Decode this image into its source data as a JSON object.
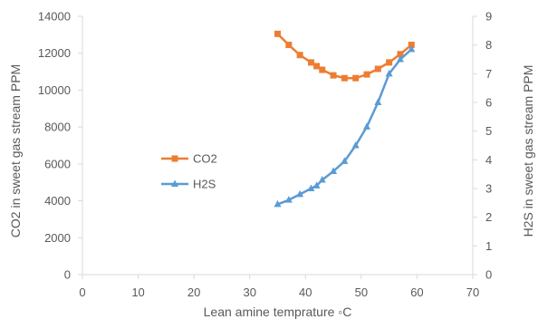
{
  "chart_data": {
    "type": "line",
    "xlabel": "Lean amine temprature ◦C",
    "ylabel_left": "CO2 in sweet gas stream PPM",
    "ylabel_right": "H2S in sweet gas stream PPM",
    "xlim": [
      0,
      70
    ],
    "x_ticks": [
      0,
      10,
      20,
      30,
      40,
      50,
      60,
      70
    ],
    "ylim_left": [
      0,
      14000
    ],
    "y_ticks_left": [
      0,
      2000,
      4000,
      6000,
      8000,
      10000,
      12000,
      14000
    ],
    "ylim_right": [
      0,
      9
    ],
    "y_ticks_right": [
      0,
      1,
      2,
      3,
      4,
      5,
      6,
      7,
      8,
      9
    ],
    "grid": false,
    "legend_position": "center-left",
    "series": [
      {
        "name": "CO2",
        "axis": "left",
        "color": "#ED7D31",
        "marker": "square",
        "x": [
          35,
          37,
          39,
          41,
          42,
          43,
          45,
          47,
          49,
          51,
          53,
          55,
          57,
          59
        ],
        "y": [
          13050,
          12450,
          11900,
          11500,
          11300,
          11100,
          10800,
          10650,
          10650,
          10850,
          11150,
          11500,
          11950,
          12450
        ]
      },
      {
        "name": "H2S",
        "axis": "right",
        "color": "#5B9BD5",
        "marker": "triangle",
        "x": [
          35,
          37,
          39,
          41,
          42,
          43,
          45,
          47,
          49,
          51,
          53,
          55,
          57,
          59
        ],
        "y": [
          2.45,
          2.6,
          2.8,
          3.0,
          3.1,
          3.3,
          3.6,
          3.95,
          4.5,
          5.15,
          6.0,
          7.0,
          7.5,
          7.85
        ]
      }
    ]
  }
}
